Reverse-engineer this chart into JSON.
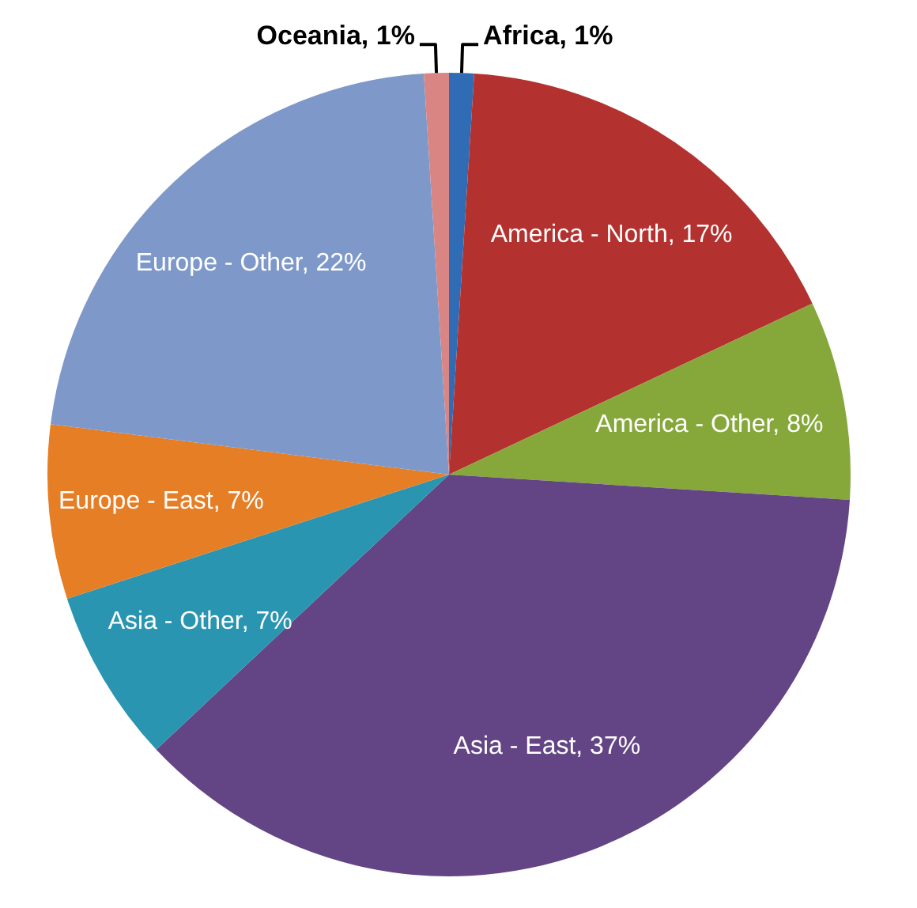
{
  "chart_data": {
    "type": "pie",
    "categories": [
      "Africa",
      "America - North",
      "America - Other",
      "Asia - East",
      "Asia - Other",
      "Europe - East",
      "Europe - Other",
      "Oceania"
    ],
    "values": [
      1,
      17,
      8,
      37,
      7,
      7,
      22,
      1
    ],
    "value_labels": [
      "1%",
      "17%",
      "8%",
      "37%",
      "7%",
      "7%",
      "22%",
      "1%"
    ],
    "colors": [
      "#2f6cb5",
      "#b3312e",
      "#86a83b",
      "#634585",
      "#2a95b1",
      "#e57e25",
      "#7e99c9",
      "#d98583"
    ]
  }
}
